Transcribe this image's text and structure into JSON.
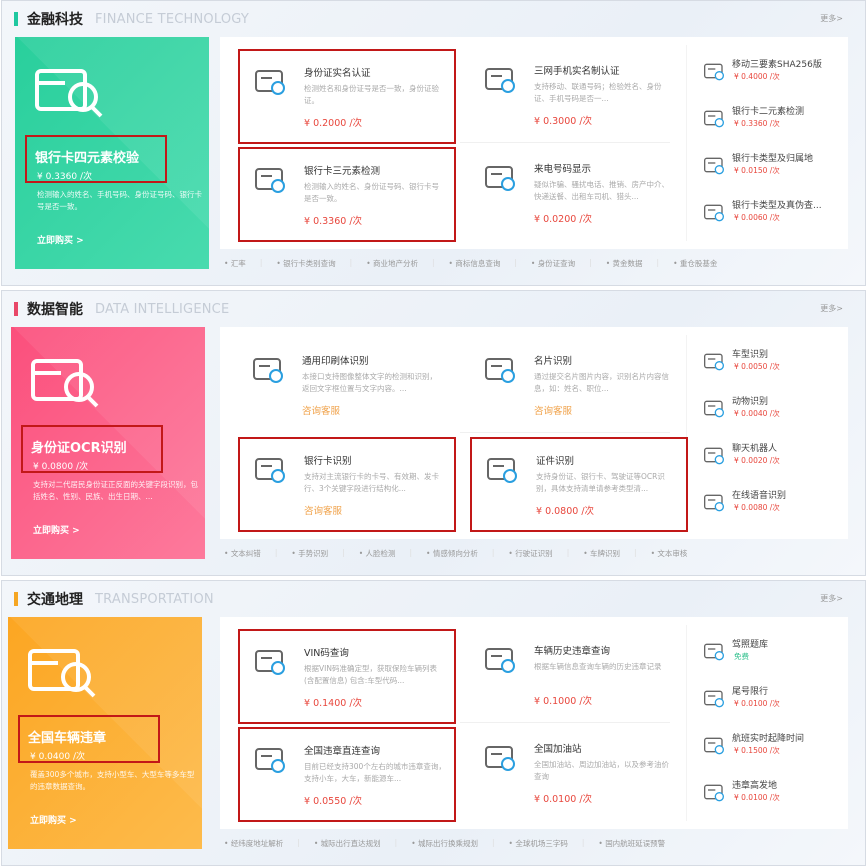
{
  "sections": [
    {
      "id": "finance",
      "title": "金融科技",
      "subtitle": "FINANCE TECHNOLOGY",
      "more": "更多>",
      "accent": "#1fc8a0",
      "gradient": [
        "#29cf9c",
        "#48dbae"
      ],
      "icon": "bank-card-search-4-icon",
      "promo": {
        "title": "银行卡四元素校验",
        "price": "¥ 0.3360 /次",
        "desc": "检测输入的姓名、手机号码、身份证号码、银行卡号是否一致。",
        "buy": "立即购买 >"
      },
      "cards": [
        {
          "name": "身份证实名认证",
          "desc": "检测姓名和身份证号是否一致，身份证验证。",
          "price": "¥ 0.2000 /次",
          "icon": "id-card-check-icon",
          "highlight": true
        },
        {
          "name": "三网手机实名制认证",
          "desc": "支持移动、联通号码；检验姓名、身份证、手机号码是否一...",
          "price": "¥ 0.3000 /次",
          "icon": "phone-3-icon",
          "highlight": false
        },
        {
          "name": "银行卡三元素检测",
          "desc": "检测输入的姓名、身份证号码、银行卡号是否一致。",
          "price": "¥ 0.3360 /次",
          "icon": "bank-card-search-3-icon",
          "highlight": true
        },
        {
          "name": "来电号码显示",
          "desc": "疑似诈骗、骚扰电话、推销、房产中介、快递送餐、出租车司机、猎头...",
          "price": "¥ 0.0200 /次",
          "icon": "phone-user-icon",
          "highlight": false
        }
      ],
      "side": [
        {
          "name": "移动三要素SHA256版",
          "price": "¥ 0.4000 /次",
          "icon": "card-icon"
        },
        {
          "name": "银行卡二元素检测",
          "price": "¥ 0.3360 /次",
          "icon": "bank-card-search-2-icon"
        },
        {
          "name": "银行卡类型及归属地",
          "price": "¥ 0.0150 /次",
          "icon": "bank-card-location-icon"
        },
        {
          "name": "银行卡类型及真伪查...",
          "price": "¥ 0.0060 /次",
          "icon": "bank-card-verify-icon"
        }
      ],
      "links": [
        "汇率",
        "银行卡类别查询",
        "商业地产分析",
        "商标信息查询",
        "身份证查询",
        "黄金数据",
        "重仓股基金"
      ]
    },
    {
      "id": "data",
      "title": "数据智能",
      "subtitle": "DATA INTELLIGENCE",
      "more": "更多>",
      "accent": "#e84868",
      "gradient": [
        "#fb4f7c",
        "#fd7a9c"
      ],
      "icon": "face-scan-icon",
      "promo": {
        "title": "身份证OCR识别",
        "price": "¥ 0.0800 /次",
        "desc": "支持对二代居民身份证正反面的关键字段识别，包括姓名、性别、民族、出生日期、...",
        "buy": "立即购买 >"
      },
      "cards": [
        {
          "name": "通用印刷体识别",
          "desc": "本接口支持图像整体文字的检测和识别，返回文字框位置与文字内容。...",
          "price": "咨询客服",
          "consult": true,
          "icon": "document-scan-icon",
          "highlight": false
        },
        {
          "name": "名片识别",
          "desc": "通过提交名片图片内容，识别名片内容信息，如：姓名、职位...",
          "price": "咨询客服",
          "consult": true,
          "icon": "business-card-scan-icon",
          "highlight": false
        },
        {
          "name": "银行卡识别",
          "desc": "支持对主流银行卡的卡号、有效期、发卡行、3个关键字段进行结构化...",
          "price": "咨询客服",
          "consult": true,
          "icon": "bank-card-scan-icon",
          "highlight": true
        },
        {
          "name": "证件识别",
          "desc": "支持身份证、银行卡、驾驶证等OCR识别，具体支持清单请参考类型清...",
          "price": "¥ 0.0800 /次",
          "icon": "certificate-scan-icon",
          "highlight": true
        }
      ],
      "side": [
        {
          "name": "车型识别",
          "price": "¥ 0.0050 /次",
          "icon": "car-scan-icon"
        },
        {
          "name": "动物识别",
          "price": "¥ 0.0040 /次",
          "icon": "animal-scan-icon"
        },
        {
          "name": "聊天机器人",
          "price": "¥ 0.0020 /次",
          "icon": "robot-icon"
        },
        {
          "name": "在线语音识别",
          "price": "¥ 0.0080 /次",
          "icon": "voice-scan-icon"
        }
      ],
      "links": [
        "文本纠错",
        "手势识别",
        "人脸检测",
        "情感倾向分析",
        "行驶证识别",
        "车牌识别",
        "文本审核"
      ]
    },
    {
      "id": "transport",
      "title": "交通地理",
      "subtitle": "TRANSPORTATION",
      "more": "更多>",
      "accent": "#f5a623",
      "gradient": [
        "#fca622",
        "#fdbb4c"
      ],
      "icon": "traffic-light-car-icon",
      "promo": {
        "title": "全国车辆违章",
        "price": "¥ 0.0400 /次",
        "desc": "覆盖300多个城市，支持小型车、大型车等多车型的违章数据查询。",
        "buy": "立即购买 >"
      },
      "cards": [
        {
          "name": "VIN码查询",
          "desc": "根据VIN码准确定型，获取保险车辆列表(含配置信息) 包含:车型代码...",
          "price": "¥ 0.1400 /次",
          "icon": "car-vin-icon",
          "highlight": true
        },
        {
          "name": "车辆历史违章查询",
          "desc": "根据车辆信息查询车辆的历史违章记录",
          "price": "¥ 0.1000 /次",
          "icon": "car-history-search-icon",
          "highlight": false
        },
        {
          "name": "全国违章直连查询",
          "desc": "目前已经支持300个左右的城市违章查询，支持小车，大车，新能源车...",
          "price": "¥ 0.0550 /次",
          "icon": "car-search-icon",
          "highlight": true
        },
        {
          "name": "全国加油站",
          "desc": "全国加油站、周边加油站，以及参考油价查询",
          "price": "¥ 0.0100 /次",
          "icon": "gas-station-icon",
          "highlight": false
        }
      ],
      "side": [
        {
          "name": "驾照题库",
          "price": "免费",
          "free": true,
          "icon": "license-folder-icon"
        },
        {
          "name": "尾号限行",
          "price": "¥ 0.0100 /次",
          "icon": "plate-limit-icon"
        },
        {
          "name": "航班实时起降时间",
          "price": "¥ 0.1500 /次",
          "icon": "flight-time-icon"
        },
        {
          "name": "违章高发地",
          "price": "¥ 0.0100 /次",
          "icon": "violation-map-icon"
        }
      ],
      "links": [
        "经纬度地址解析",
        "城际出行直达规划",
        "城际出行换乘规划",
        "全球机场三字码",
        "国内航班延误预警"
      ]
    }
  ],
  "colors": {
    "price": "#e8473d",
    "consult": "#f0a24a",
    "free": "#2bbf8a",
    "highlight": "#c21818"
  }
}
